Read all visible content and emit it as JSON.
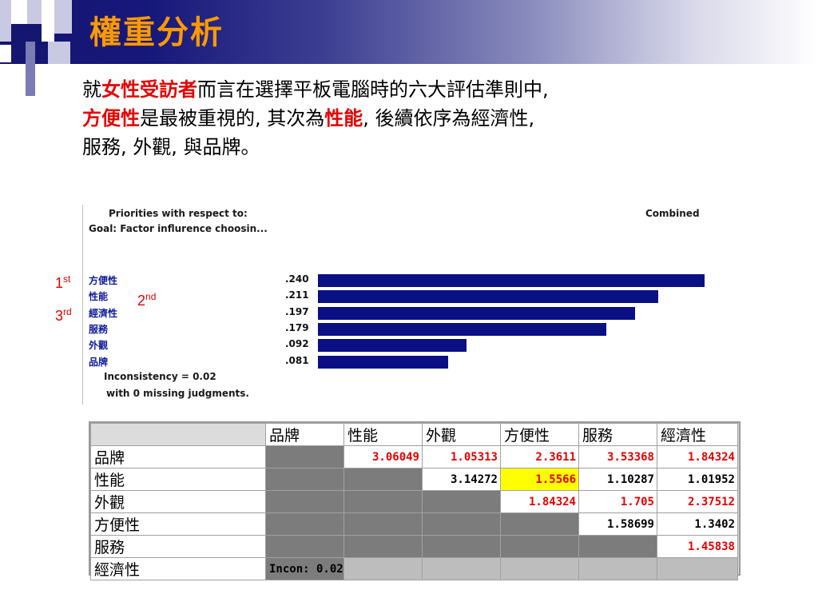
{
  "header": {
    "title": "權重分析"
  },
  "intro": {
    "p1": "就",
    "p2": "女性受訪者",
    "p3": "而言在選擇平板電腦時的六大評估準則中,",
    "p4": "方便性",
    "p5": "是最被重視的, 其次為",
    "p6": "性能",
    "p7": ", 後續依序為經濟性,",
    "p8": "服務, 外觀, 與品牌。"
  },
  "chart_data": {
    "type": "bar",
    "orientation": "horizontal",
    "title": "Priorities with respect to:",
    "subtitle": "Goal: Factor influrence choosin...",
    "mode_label": "Combined",
    "categories": [
      "方便性",
      "性能",
      "經濟性",
      "服務",
      "外觀",
      "品牌"
    ],
    "values": [
      0.24,
      0.211,
      0.197,
      0.179,
      0.092,
      0.081
    ],
    "value_labels": [
      ".240",
      ".211",
      ".197",
      ".179",
      ".092",
      ".081"
    ],
    "bar_color": "#0a0f84",
    "xlim": [
      0,
      0.24
    ],
    "footer_1": "Inconsistency = 0.02",
    "footer_2": "with 0  missing judgments.",
    "annotations": {
      "first": {
        "num": "1",
        "sup": "st"
      },
      "second": {
        "num": "2",
        "sup": "nd"
      },
      "third": {
        "num": "3",
        "sup": "rd"
      }
    }
  },
  "matrix": {
    "columns": [
      "品牌",
      "性能",
      "外觀",
      "方便性",
      "服務",
      "經濟性"
    ],
    "rows": [
      {
        "label": "品牌",
        "cells": [
          "",
          "3.06049",
          "1.05313",
          "2.3611",
          "3.53368",
          "1.84324"
        ]
      },
      {
        "label": "性能",
        "cells": [
          "",
          "",
          "3.14272",
          "1.5566",
          "1.10287",
          "1.01952"
        ]
      },
      {
        "label": "外觀",
        "cells": [
          "",
          "",
          "",
          "1.84324",
          "1.705",
          "2.37512"
        ]
      },
      {
        "label": "方便性",
        "cells": [
          "",
          "",
          "",
          "",
          "1.58699",
          "1.3402"
        ]
      },
      {
        "label": "服務",
        "cells": [
          "",
          "",
          "",
          "",
          "",
          "1.45838"
        ]
      },
      {
        "label": "經濟性",
        "cells": [
          "Incon: 0.02",
          "",
          "",
          "",
          "",
          ""
        ]
      }
    ],
    "colors": {
      "red": "#e60000",
      "highlight": "#ffff00"
    }
  }
}
